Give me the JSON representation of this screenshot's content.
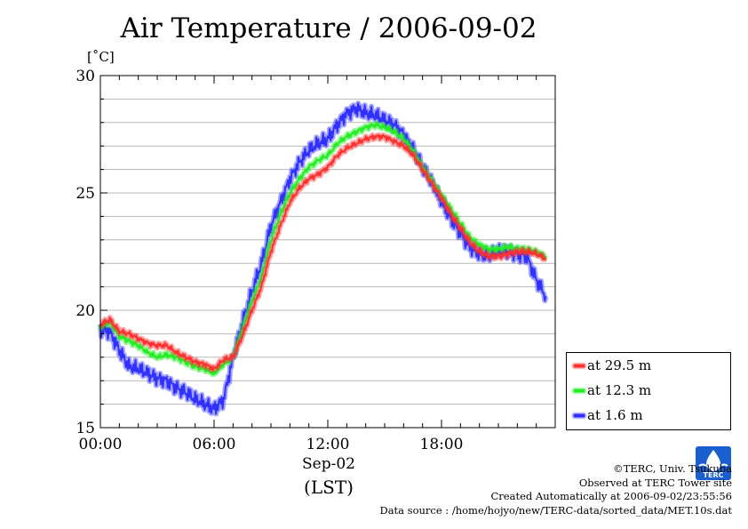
{
  "title": "Air Temperature / 2006-09-02",
  "unit": "[˚C]",
  "x_axis": {
    "ticks": [
      "00:00",
      "06:00",
      "12:00",
      "18:00"
    ],
    "date_label": "Sep-02",
    "zone_label": "(LST)"
  },
  "y_axis": {
    "ticks": [
      "15",
      "20",
      "25",
      "30"
    ]
  },
  "legend": [
    {
      "label": "at 29.5 m",
      "color": "#ff3030"
    },
    {
      "label": "at 12.3 m",
      "color": "#22ee22"
    },
    {
      "label": "at 1.6 m",
      "color": "#3030ff"
    }
  ],
  "credits": {
    "copyright": "©TERC, Univ. Tsukuba",
    "observed": "Observed at TERC Tower site",
    "created": "Created Automatically at 2006-09-02/23:55:56",
    "source": "Data source : /home/hojyo/new/TERC-data/sorted_data/MET.10s.dat"
  },
  "logo": {
    "text": "TERC",
    "icon": "terc-logo-icon",
    "color": "#1a5fd0"
  },
  "chart_data": {
    "type": "line",
    "title": "Air Temperature / 2006-09-02",
    "ylabel": "[˚C]",
    "xlabel": "Sep-02 (LST)",
    "x_unit": "hour of day",
    "xlim": [
      0,
      23.5
    ],
    "ylim": [
      15,
      30
    ],
    "x_ticks": [
      "00:00",
      "06:00",
      "12:00",
      "18:00"
    ],
    "y_ticks": [
      15,
      20,
      25,
      30
    ],
    "grid": "horizontal",
    "legend_position": "right",
    "x": [
      0,
      0.5,
      1,
      1.5,
      2,
      2.5,
      3,
      3.5,
      4,
      4.5,
      5,
      5.5,
      6,
      6.5,
      7,
      7.5,
      8,
      8.5,
      9,
      9.5,
      10,
      10.5,
      11,
      11.5,
      12,
      12.5,
      13,
      13.5,
      14,
      14.5,
      15,
      15.5,
      16,
      16.5,
      17,
      17.5,
      18,
      18.5,
      19,
      19.5,
      20,
      20.5,
      21,
      21.5,
      22,
      22.5,
      23,
      23.5
    ],
    "series": [
      {
        "name": "at 29.5 m",
        "color": "#ff3030",
        "values": [
          19.4,
          19.6,
          19.1,
          19.0,
          18.8,
          18.6,
          18.5,
          18.5,
          18.2,
          18.0,
          17.8,
          17.7,
          17.5,
          17.9,
          18.0,
          18.9,
          20.0,
          21.0,
          22.5,
          23.6,
          24.6,
          25.2,
          25.6,
          25.8,
          26.1,
          26.6,
          26.9,
          27.1,
          27.3,
          27.4,
          27.4,
          27.2,
          27.0,
          26.6,
          26.0,
          25.4,
          24.8,
          24.1,
          23.5,
          22.9,
          22.5,
          22.3,
          22.3,
          22.4,
          22.5,
          22.5,
          22.4,
          22.2
        ]
      },
      {
        "name": "at 12.3 m",
        "color": "#22ee22",
        "values": [
          19.3,
          19.5,
          18.9,
          18.7,
          18.5,
          18.2,
          18.0,
          18.1,
          18.0,
          17.8,
          17.6,
          17.5,
          17.3,
          17.7,
          18.0,
          19.2,
          20.4,
          21.4,
          23.0,
          24.1,
          25.0,
          25.6,
          26.1,
          26.4,
          26.6,
          27.1,
          27.4,
          27.6,
          27.8,
          27.9,
          27.8,
          27.6,
          27.3,
          26.8,
          26.1,
          25.5,
          24.9,
          24.3,
          23.7,
          23.1,
          22.8,
          22.6,
          22.6,
          22.7,
          22.6,
          22.6,
          22.5,
          22.3
        ]
      },
      {
        "name": "at 1.6 m",
        "color": "#3030ff",
        "values": [
          19.2,
          19.1,
          18.3,
          17.6,
          17.5,
          17.3,
          17.1,
          17.0,
          16.7,
          16.5,
          16.2,
          16.0,
          15.8,
          16.2,
          18.0,
          19.5,
          20.8,
          22.0,
          23.6,
          24.6,
          25.6,
          26.3,
          26.8,
          27.1,
          27.3,
          27.9,
          28.4,
          28.6,
          28.4,
          28.3,
          28.1,
          27.9,
          27.5,
          26.9,
          26.1,
          25.4,
          24.6,
          23.9,
          23.3,
          22.7,
          22.4,
          22.3,
          22.5,
          22.5,
          22.4,
          22.3,
          21.3,
          20.6
        ]
      }
    ]
  }
}
